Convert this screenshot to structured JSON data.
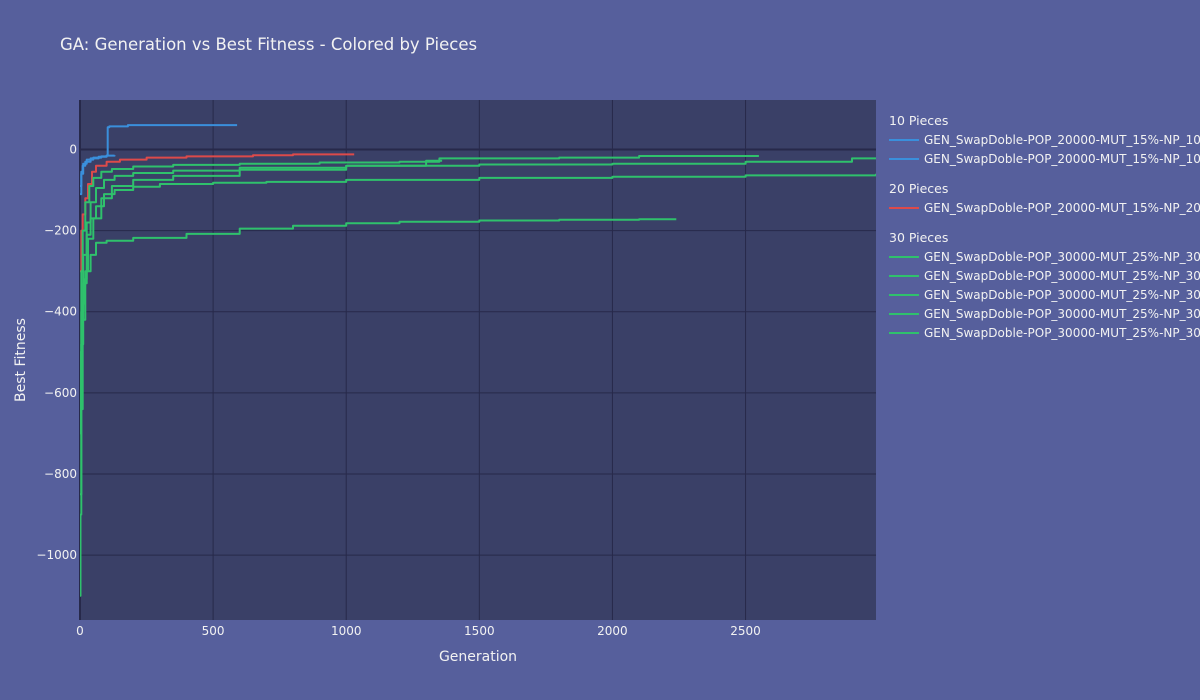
{
  "chart_data": {
    "type": "line",
    "title": "GA: Generation vs Best Fitness - Colored by Pieces",
    "xlabel": "Generation",
    "ylabel": "Best Fitness",
    "xlim": [
      0,
      2990
    ],
    "ylim": [
      -1160,
      122
    ],
    "x_ticks": [
      0,
      500,
      1000,
      1500,
      2000,
      2500
    ],
    "x_tick_labels": [
      "0",
      "500",
      "1000",
      "1500",
      "2000",
      "2500"
    ],
    "y_ticks": [
      0,
      -200,
      -400,
      -600,
      -800,
      -1000
    ],
    "y_tick_labels": [
      "0",
      "−200",
      "−400",
      "−600",
      "−800",
      "−1000"
    ],
    "grid": true,
    "legend_position": "right",
    "colors": {
      "10": "#3a8fdc",
      "20": "#dd4a4a",
      "30": "#2fc16c",
      "background": "#565f9c",
      "plot": "#3a4067",
      "grid": "#27294a"
    },
    "legend_groups": [
      {
        "title": "10 Pieces",
        "color": "#3a8fdc",
        "entries": [
          "GEN_SwapDoble-POP_20000-MUT_15%-NP_10",
          "GEN_SwapDoble-POP_20000-MUT_15%-NP_10"
        ]
      },
      {
        "title": "20 Pieces",
        "color": "#dd4a4a",
        "entries": [
          "GEN_SwapDoble-POP_20000-MUT_15%-NP_20"
        ]
      },
      {
        "title": "30 Pieces",
        "color": "#2fc16c",
        "entries": [
          "GEN_SwapDoble-POP_30000-MUT_25%-NP_30",
          "GEN_SwapDoble-POP_30000-MUT_25%-NP_30",
          "GEN_SwapDoble-POP_30000-MUT_25%-NP_30",
          "GEN_SwapDoble-POP_30000-MUT_25%-NP_30",
          "GEN_SwapDoble-POP_30000-MUT_25%-NP_30"
        ]
      }
    ],
    "series": [
      {
        "name": "GEN_SwapDoble-POP_20000-MUT_15%-NP_10",
        "group": "10",
        "points": [
          [
            0,
            -110
          ],
          [
            5,
            -60
          ],
          [
            12,
            -35
          ],
          [
            25,
            -25
          ],
          [
            50,
            -20
          ],
          [
            80,
            -17
          ],
          [
            100,
            -15
          ],
          [
            104,
            55
          ],
          [
            110,
            57
          ],
          [
            180,
            60
          ],
          [
            590,
            60
          ]
        ]
      },
      {
        "name": "GEN_SwapDoble-POP_20000-MUT_15%-NP_10",
        "group": "10",
        "points": [
          [
            0,
            -90
          ],
          [
            5,
            -55
          ],
          [
            10,
            -40
          ],
          [
            20,
            -30
          ],
          [
            40,
            -22
          ],
          [
            70,
            -18
          ],
          [
            100,
            -15
          ],
          [
            130,
            -14
          ]
        ]
      },
      {
        "name": "GEN_SwapDoble-POP_20000-MUT_15%-NP_20",
        "group": "20",
        "points": [
          [
            0,
            -300
          ],
          [
            5,
            -200
          ],
          [
            10,
            -160
          ],
          [
            20,
            -120
          ],
          [
            30,
            -85
          ],
          [
            45,
            -55
          ],
          [
            60,
            -40
          ],
          [
            100,
            -30
          ],
          [
            150,
            -25
          ],
          [
            250,
            -20
          ],
          [
            400,
            -17
          ],
          [
            650,
            -14
          ],
          [
            800,
            -12
          ],
          [
            1030,
            -12
          ]
        ]
      },
      {
        "name": "GEN_SwapDoble-POP_30000-MUT_25%-NP_30",
        "group": "30",
        "points": [
          [
            0,
            -1100
          ],
          [
            2,
            -900
          ],
          [
            5,
            -640
          ],
          [
            10,
            -420
          ],
          [
            20,
            -300
          ],
          [
            30,
            -220
          ],
          [
            50,
            -170
          ],
          [
            80,
            -120
          ],
          [
            120,
            -90
          ],
          [
            200,
            -75
          ],
          [
            350,
            -65
          ],
          [
            600,
            -50
          ],
          [
            1000,
            -40
          ],
          [
            1300,
            -30
          ],
          [
            1350,
            -22
          ],
          [
            1800,
            -20
          ],
          [
            2100,
            -16
          ],
          [
            2550,
            -16
          ]
        ]
      },
      {
        "name": "GEN_SwapDoble-POP_30000-MUT_25%-NP_30",
        "group": "30",
        "points": [
          [
            0,
            -700
          ],
          [
            3,
            -500
          ],
          [
            8,
            -380
          ],
          [
            15,
            -320
          ],
          [
            25,
            -300
          ],
          [
            40,
            -260
          ],
          [
            60,
            -230
          ],
          [
            100,
            -225
          ],
          [
            200,
            -218
          ],
          [
            400,
            -208
          ],
          [
            600,
            -195
          ],
          [
            800,
            -188
          ],
          [
            1000,
            -182
          ],
          [
            1200,
            -178
          ],
          [
            1500,
            -175
          ],
          [
            1800,
            -173
          ],
          [
            2100,
            -172
          ],
          [
            2240,
            -172
          ]
        ]
      },
      {
        "name": "GEN_SwapDoble-POP_30000-MUT_25%-NP_30",
        "group": "30",
        "points": [
          [
            0,
            -850
          ],
          [
            5,
            -480
          ],
          [
            12,
            -330
          ],
          [
            25,
            -210
          ],
          [
            40,
            -170
          ],
          [
            60,
            -140
          ],
          [
            90,
            -110
          ],
          [
            130,
            -100
          ],
          [
            200,
            -92
          ],
          [
            300,
            -85
          ],
          [
            500,
            -82
          ],
          [
            700,
            -80
          ],
          [
            1000,
            -75
          ],
          [
            1500,
            -70
          ],
          [
            2000,
            -67
          ],
          [
            2500,
            -64
          ],
          [
            2990,
            -60
          ]
        ]
      },
      {
        "name": "GEN_SwapDoble-POP_30000-MUT_25%-NP_30",
        "group": "30",
        "points": [
          [
            0,
            -600
          ],
          [
            5,
            -400
          ],
          [
            12,
            -260
          ],
          [
            25,
            -180
          ],
          [
            40,
            -130
          ],
          [
            60,
            -95
          ],
          [
            90,
            -75
          ],
          [
            130,
            -65
          ],
          [
            200,
            -58
          ],
          [
            350,
            -52
          ],
          [
            600,
            -45
          ],
          [
            1000,
            -40
          ],
          [
            1500,
            -37
          ],
          [
            2000,
            -35
          ],
          [
            2500,
            -30
          ],
          [
            2900,
            -22
          ],
          [
            2990,
            -20
          ]
        ]
      },
      {
        "name": "GEN_SwapDoble-POP_30000-MUT_25%-NP_30",
        "group": "30",
        "points": [
          [
            0,
            -500
          ],
          [
            5,
            -300
          ],
          [
            10,
            -200
          ],
          [
            20,
            -130
          ],
          [
            35,
            -90
          ],
          [
            50,
            -70
          ],
          [
            80,
            -55
          ],
          [
            120,
            -48
          ],
          [
            200,
            -42
          ],
          [
            350,
            -38
          ],
          [
            600,
            -35
          ],
          [
            900,
            -32
          ],
          [
            1200,
            -30
          ],
          [
            1300,
            -28
          ],
          [
            1360,
            -28
          ]
        ]
      }
    ]
  }
}
